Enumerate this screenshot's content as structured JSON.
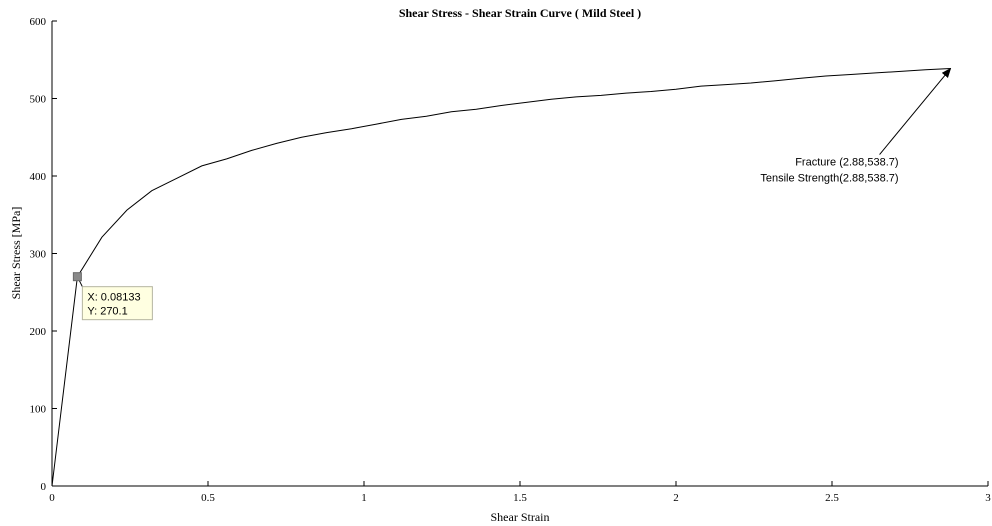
{
  "chart_data": {
    "type": "line",
    "title": "Shear Stress - Shear Strain Curve ( Mild Steel )",
    "xlabel": "Shear Strain",
    "ylabel": "Shear Stress [MPa]",
    "xlim": [
      0,
      3
    ],
    "ylim": [
      0,
      600
    ],
    "xticks": [
      0,
      0.5,
      1,
      1.5,
      2,
      2.5,
      3
    ],
    "xtick_labels": [
      "0",
      "0.5",
      "1",
      "1.5",
      "2",
      "2.5",
      "3"
    ],
    "yticks": [
      0,
      100,
      200,
      300,
      400,
      500,
      600
    ],
    "ytick_labels": [
      "0",
      "100",
      "200",
      "300",
      "400",
      "500",
      "600"
    ],
    "grid": false,
    "series": [
      {
        "color": "#000000",
        "x": [
          0,
          0.0813,
          0.16,
          0.24,
          0.32,
          0.4,
          0.48,
          0.56,
          0.64,
          0.72,
          0.8,
          0.88,
          0.96,
          1.04,
          1.12,
          1.2,
          1.28,
          1.36,
          1.44,
          1.52,
          1.6,
          1.68,
          1.76,
          1.84,
          1.92,
          2.0,
          2.08,
          2.16,
          2.24,
          2.32,
          2.4,
          2.48,
          2.56,
          2.64,
          2.72,
          2.8,
          2.88
        ],
        "y": [
          0,
          270.1,
          321,
          356,
          381,
          397,
          413,
          422,
          433,
          442,
          450,
          456,
          461,
          467,
          473,
          477,
          483,
          486,
          491,
          495,
          499,
          502,
          504,
          507,
          509,
          512,
          516,
          518,
          520,
          523,
          526,
          529,
          531,
          533,
          535,
          537,
          538.7
        ]
      }
    ],
    "datatip": {
      "x": 0.08133,
      "y": 270.1,
      "x_text": "X: 0.08133",
      "y_text": "Y: 270.1"
    },
    "annotation": {
      "x": 2.88,
      "y": 538.7,
      "line1": "Fracture (2.88,538.7)",
      "line2": "Tensile Strength(2.88,538.7)"
    }
  }
}
